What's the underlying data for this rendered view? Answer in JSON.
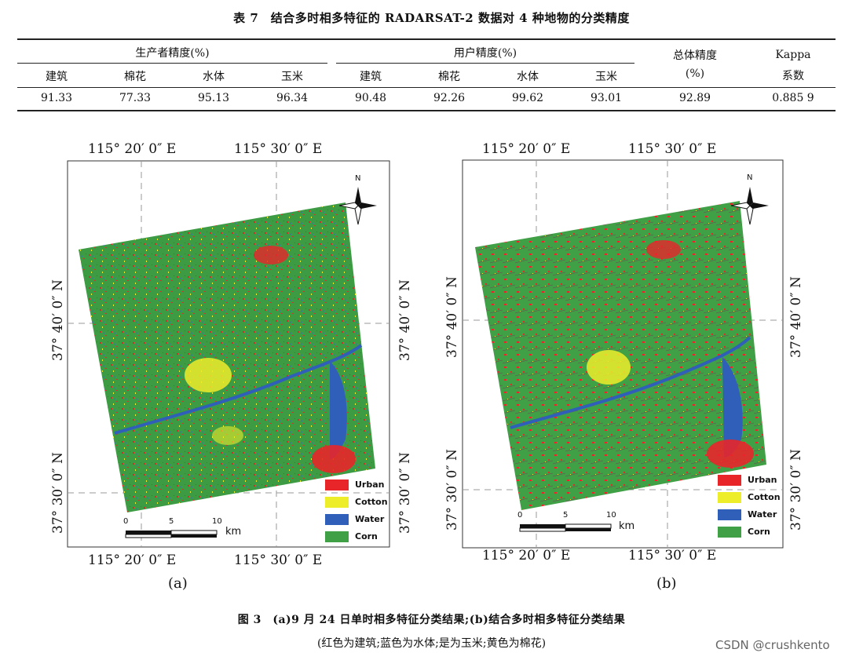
{
  "table": {
    "title": "表 7　结合多时相多特征的 RADARSAT-2 数据对 4 种地物的分类精度",
    "producer_header": "生产者精度(%)",
    "user_header": "用户精度(%)",
    "overall_header_1": "总体精度",
    "overall_header_2": "(%)",
    "kappa_header_1": "Kappa",
    "kappa_header_2": "系数",
    "classes": [
      "建筑",
      "棉花",
      "水体",
      "玉米"
    ],
    "producer_values": [
      "91.33",
      "77.33",
      "95.13",
      "96.34"
    ],
    "user_values": [
      "90.48",
      "92.26",
      "99.62",
      "93.01"
    ],
    "overall": "92.89",
    "kappa": "0.885 9"
  },
  "maps": {
    "lon_left": "115° 20′ 0″ E",
    "lon_right": "115° 30′ 0″ E",
    "lat_top": "37° 40′ 0″ N",
    "lat_bottom": "37° 30′ 0″ N",
    "north": "N",
    "scale_ticks": [
      "0",
      "5",
      "10"
    ],
    "scale_unit": "km",
    "legend": [
      {
        "label": "Urban",
        "color": "#e8262a"
      },
      {
        "label": "Cotton",
        "color": "#eded2a"
      },
      {
        "label": "Water",
        "color": "#2f5fb8"
      },
      {
        "label": "Corn",
        "color": "#3fa046"
      }
    ],
    "panel_a_label": "(a)",
    "panel_b_label": "(b)"
  },
  "figure": {
    "caption_line1": "图 3　(a)9 月 24 日单时相多特征分类结果;(b)结合多时相多特征分类结果",
    "caption_line2": "(红色为建筑;蓝色为水体;是为玉米;黄色为棉花)"
  },
  "watermark": "CSDN @crushkento"
}
